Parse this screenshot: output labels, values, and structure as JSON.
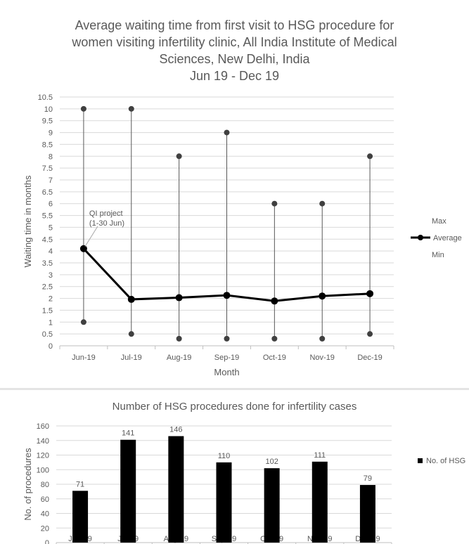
{
  "chart_data": [
    {
      "type": "line",
      "title_lines": [
        "Average waiting time from first visit to HSG procedure for",
        "women visiting infertility clinic, All India Institute of Medical",
        "Sciences, New Delhi, India",
        "Jun 19 - Dec 19"
      ],
      "xlabel": "Month",
      "ylabel": "Waiting time in months",
      "categories": [
        "Jun-19",
        "Jul-19",
        "Aug-19",
        "Sep-19",
        "Oct-19",
        "Nov-19",
        "Dec-19"
      ],
      "ylim": [
        0,
        10.5
      ],
      "yticks": [
        "0",
        "0.5",
        "1",
        "1.5",
        "2",
        "2.5",
        "3",
        "3.5",
        "4",
        "4.5",
        "5",
        "5.5",
        "6",
        "6.5",
        "7",
        "7.5",
        "8",
        "8.5",
        "9",
        "9.5",
        "10",
        "10.5"
      ],
      "grid": true,
      "series": [
        {
          "name": "Max",
          "values": [
            10,
            10,
            8,
            9,
            6,
            6,
            8
          ]
        },
        {
          "name": "Average",
          "values": [
            4.1,
            1.96,
            2.03,
            2.13,
            1.89,
            2.1,
            2.2
          ]
        },
        {
          "name": "Min",
          "values": [
            1,
            0.5,
            0.3,
            0.3,
            0.3,
            0.3,
            0.5
          ]
        }
      ],
      "legend_position": "right",
      "annotation": {
        "lines": [
          "QI project",
          "(1-30 Jun)"
        ],
        "category": "Jun-19"
      },
      "colors": {
        "line": "#000000",
        "marker": "#404040",
        "grid": "#d9d9d9",
        "text": "#595959"
      }
    },
    {
      "type": "bar",
      "title": "Number of HSG procedures done for infertility cases",
      "xlabel": "",
      "ylabel": "No. of procedures",
      "categories": [
        "Jun-19",
        "Jul-19",
        "Aug-19",
        "Sep-19",
        "Oct-19",
        "Nov-19",
        "Dec-19"
      ],
      "ylim": [
        0,
        160
      ],
      "yticks": [
        "0",
        "20",
        "40",
        "60",
        "80",
        "100",
        "120",
        "140",
        "160"
      ],
      "grid": true,
      "series": [
        {
          "name": "No. of HSG",
          "values": [
            71,
            141,
            146,
            110,
            102,
            111,
            79
          ]
        }
      ],
      "data_labels": true,
      "legend_position": "right",
      "colors": {
        "bar": "#000000",
        "grid": "#d9d9d9",
        "text": "#595959"
      }
    }
  ]
}
